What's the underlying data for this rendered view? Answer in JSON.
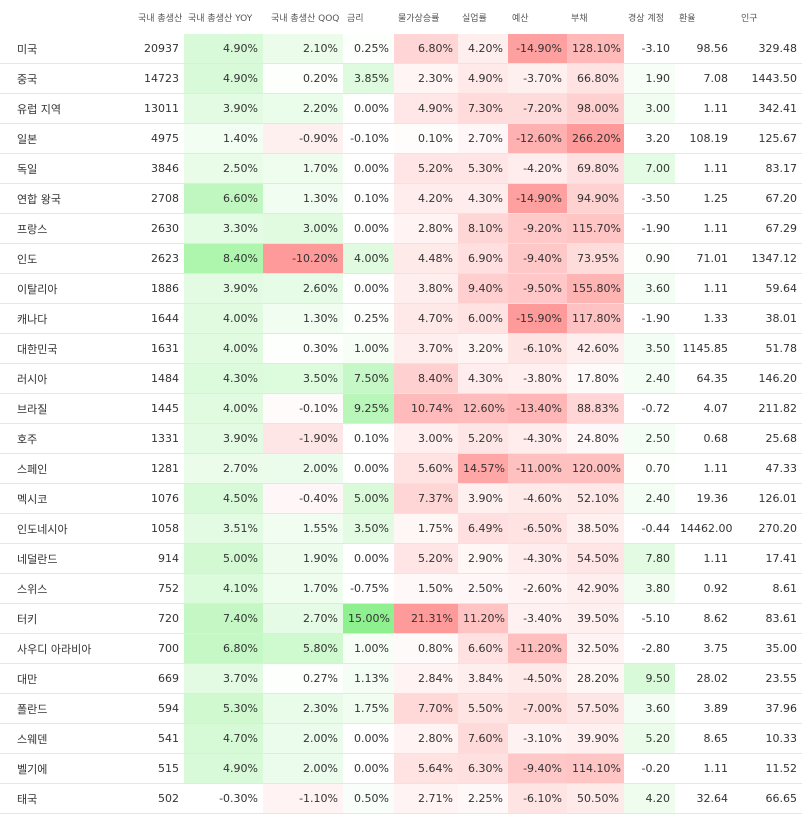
{
  "chart_data": {
    "type": "table",
    "columns": [
      {
        "key": "country",
        "label": ""
      },
      {
        "key": "gdp",
        "label": "국내 총생산"
      },
      {
        "key": "gdp_yoy",
        "label": "국내 총생산 YOY"
      },
      {
        "key": "gdp_qoq",
        "label": "국내 총생산 QOQ"
      },
      {
        "key": "rate",
        "label": "금리"
      },
      {
        "key": "inflation",
        "label": "물가상승률"
      },
      {
        "key": "unemployment",
        "label": "실업률"
      },
      {
        "key": "budget",
        "label": "예산"
      },
      {
        "key": "debt",
        "label": "부채"
      },
      {
        "key": "current_account",
        "label": "경상 계정"
      },
      {
        "key": "fx",
        "label": "환율"
      },
      {
        "key": "population",
        "label": "인구"
      }
    ],
    "rows": [
      {
        "country": "미국",
        "gdp": "20937",
        "gdp_yoy": "4.90%",
        "gdp_qoq": "2.10%",
        "rate": "0.25%",
        "inflation": "6.80%",
        "unemployment": "4.20%",
        "budget": "-14.90%",
        "debt": "128.10%",
        "current_account": "-3.10",
        "fx": "98.56",
        "population": "329.48"
      },
      {
        "country": "중국",
        "gdp": "14723",
        "gdp_yoy": "4.90%",
        "gdp_qoq": "0.20%",
        "rate": "3.85%",
        "inflation": "2.30%",
        "unemployment": "4.90%",
        "budget": "-3.70%",
        "debt": "66.80%",
        "current_account": "1.90",
        "fx": "7.08",
        "population": "1443.50"
      },
      {
        "country": "유럽 지역",
        "gdp": "13011",
        "gdp_yoy": "3.90%",
        "gdp_qoq": "2.20%",
        "rate": "0.00%",
        "inflation": "4.90%",
        "unemployment": "7.30%",
        "budget": "-7.20%",
        "debt": "98.00%",
        "current_account": "3.00",
        "fx": "1.11",
        "population": "342.41"
      },
      {
        "country": "일본",
        "gdp": "4975",
        "gdp_yoy": "1.40%",
        "gdp_qoq": "-0.90%",
        "rate": "-0.10%",
        "inflation": "0.10%",
        "unemployment": "2.70%",
        "budget": "-12.60%",
        "debt": "266.20%",
        "current_account": "3.20",
        "fx": "108.19",
        "population": "125.67"
      },
      {
        "country": "독일",
        "gdp": "3846",
        "gdp_yoy": "2.50%",
        "gdp_qoq": "1.70%",
        "rate": "0.00%",
        "inflation": "5.20%",
        "unemployment": "5.30%",
        "budget": "-4.20%",
        "debt": "69.80%",
        "current_account": "7.00",
        "fx": "1.11",
        "population": "83.17"
      },
      {
        "country": "연합 왕국",
        "gdp": "2708",
        "gdp_yoy": "6.60%",
        "gdp_qoq": "1.30%",
        "rate": "0.10%",
        "inflation": "4.20%",
        "unemployment": "4.30%",
        "budget": "-14.90%",
        "debt": "94.90%",
        "current_account": "-3.50",
        "fx": "1.25",
        "population": "67.20"
      },
      {
        "country": "프랑스",
        "gdp": "2630",
        "gdp_yoy": "3.30%",
        "gdp_qoq": "3.00%",
        "rate": "0.00%",
        "inflation": "2.80%",
        "unemployment": "8.10%",
        "budget": "-9.20%",
        "debt": "115.70%",
        "current_account": "-1.90",
        "fx": "1.11",
        "population": "67.29"
      },
      {
        "country": "인도",
        "gdp": "2623",
        "gdp_yoy": "8.40%",
        "gdp_qoq": "-10.20%",
        "rate": "4.00%",
        "inflation": "4.48%",
        "unemployment": "6.90%",
        "budget": "-9.40%",
        "debt": "73.95%",
        "current_account": "0.90",
        "fx": "71.01",
        "population": "1347.12"
      },
      {
        "country": "이탈리아",
        "gdp": "1886",
        "gdp_yoy": "3.90%",
        "gdp_qoq": "2.60%",
        "rate": "0.00%",
        "inflation": "3.80%",
        "unemployment": "9.40%",
        "budget": "-9.50%",
        "debt": "155.80%",
        "current_account": "3.60",
        "fx": "1.11",
        "population": "59.64"
      },
      {
        "country": "캐나다",
        "gdp": "1644",
        "gdp_yoy": "4.00%",
        "gdp_qoq": "1.30%",
        "rate": "0.25%",
        "inflation": "4.70%",
        "unemployment": "6.00%",
        "budget": "-15.90%",
        "debt": "117.80%",
        "current_account": "-1.90",
        "fx": "1.33",
        "population": "38.01"
      },
      {
        "country": "대한민국",
        "gdp": "1631",
        "gdp_yoy": "4.00%",
        "gdp_qoq": "0.30%",
        "rate": "1.00%",
        "inflation": "3.70%",
        "unemployment": "3.20%",
        "budget": "-6.10%",
        "debt": "42.60%",
        "current_account": "3.50",
        "fx": "1145.85",
        "population": "51.78"
      },
      {
        "country": "러시아",
        "gdp": "1484",
        "gdp_yoy": "4.30%",
        "gdp_qoq": "3.50%",
        "rate": "7.50%",
        "inflation": "8.40%",
        "unemployment": "4.30%",
        "budget": "-3.80%",
        "debt": "17.80%",
        "current_account": "2.40",
        "fx": "64.35",
        "population": "146.20"
      },
      {
        "country": "브라질",
        "gdp": "1445",
        "gdp_yoy": "4.00%",
        "gdp_qoq": "-0.10%",
        "rate": "9.25%",
        "inflation": "10.74%",
        "unemployment": "12.60%",
        "budget": "-13.40%",
        "debt": "88.83%",
        "current_account": "-0.72",
        "fx": "4.07",
        "population": "211.82"
      },
      {
        "country": "호주",
        "gdp": "1331",
        "gdp_yoy": "3.90%",
        "gdp_qoq": "-1.90%",
        "rate": "0.10%",
        "inflation": "3.00%",
        "unemployment": "5.20%",
        "budget": "-4.30%",
        "debt": "24.80%",
        "current_account": "2.50",
        "fx": "0.68",
        "population": "25.68"
      },
      {
        "country": "스페인",
        "gdp": "1281",
        "gdp_yoy": "2.70%",
        "gdp_qoq": "2.00%",
        "rate": "0.00%",
        "inflation": "5.60%",
        "unemployment": "14.57%",
        "budget": "-11.00%",
        "debt": "120.00%",
        "current_account": "0.70",
        "fx": "1.11",
        "population": "47.33"
      },
      {
        "country": "멕시코",
        "gdp": "1076",
        "gdp_yoy": "4.50%",
        "gdp_qoq": "-0.40%",
        "rate": "5.00%",
        "inflation": "7.37%",
        "unemployment": "3.90%",
        "budget": "-4.60%",
        "debt": "52.10%",
        "current_account": "2.40",
        "fx": "19.36",
        "population": "126.01"
      },
      {
        "country": "인도네시아",
        "gdp": "1058",
        "gdp_yoy": "3.51%",
        "gdp_qoq": "1.55%",
        "rate": "3.50%",
        "inflation": "1.75%",
        "unemployment": "6.49%",
        "budget": "-6.50%",
        "debt": "38.50%",
        "current_account": "-0.44",
        "fx": "14462.00",
        "population": "270.20"
      },
      {
        "country": "네덜란드",
        "gdp": "914",
        "gdp_yoy": "5.00%",
        "gdp_qoq": "1.90%",
        "rate": "0.00%",
        "inflation": "5.20%",
        "unemployment": "2.90%",
        "budget": "-4.30%",
        "debt": "54.50%",
        "current_account": "7.80",
        "fx": "1.11",
        "population": "17.41"
      },
      {
        "country": "스위스",
        "gdp": "752",
        "gdp_yoy": "4.10%",
        "gdp_qoq": "1.70%",
        "rate": "-0.75%",
        "inflation": "1.50%",
        "unemployment": "2.50%",
        "budget": "-2.60%",
        "debt": "42.90%",
        "current_account": "3.80",
        "fx": "0.92",
        "population": "8.61"
      },
      {
        "country": "터키",
        "gdp": "720",
        "gdp_yoy": "7.40%",
        "gdp_qoq": "2.70%",
        "rate": "15.00%",
        "inflation": "21.31%",
        "unemployment": "11.20%",
        "budget": "-3.40%",
        "debt": "39.50%",
        "current_account": "-5.10",
        "fx": "8.62",
        "population": "83.61"
      },
      {
        "country": "사우디 아라비아",
        "gdp": "700",
        "gdp_yoy": "6.80%",
        "gdp_qoq": "5.80%",
        "rate": "1.00%",
        "inflation": "0.80%",
        "unemployment": "6.60%",
        "budget": "-11.20%",
        "debt": "32.50%",
        "current_account": "-2.80",
        "fx": "3.75",
        "population": "35.00"
      },
      {
        "country": "대만",
        "gdp": "669",
        "gdp_yoy": "3.70%",
        "gdp_qoq": "0.27%",
        "rate": "1.13%",
        "inflation": "2.84%",
        "unemployment": "3.84%",
        "budget": "-4.50%",
        "debt": "28.20%",
        "current_account": "9.50",
        "fx": "28.02",
        "population": "23.55"
      },
      {
        "country": "폴란드",
        "gdp": "594",
        "gdp_yoy": "5.30%",
        "gdp_qoq": "2.30%",
        "rate": "1.75%",
        "inflation": "7.70%",
        "unemployment": "5.50%",
        "budget": "-7.00%",
        "debt": "57.50%",
        "current_account": "3.60",
        "fx": "3.89",
        "population": "37.96"
      },
      {
        "country": "스웨덴",
        "gdp": "541",
        "gdp_yoy": "4.70%",
        "gdp_qoq": "2.00%",
        "rate": "0.00%",
        "inflation": "2.80%",
        "unemployment": "7.60%",
        "budget": "-3.10%",
        "debt": "39.90%",
        "current_account": "5.20",
        "fx": "8.65",
        "population": "10.33"
      },
      {
        "country": "벨기에",
        "gdp": "515",
        "gdp_yoy": "4.90%",
        "gdp_qoq": "2.00%",
        "rate": "0.00%",
        "inflation": "5.64%",
        "unemployment": "6.30%",
        "budget": "-9.40%",
        "debt": "114.10%",
        "current_account": "-0.20",
        "fx": "1.11",
        "population": "11.52"
      },
      {
        "country": "태국",
        "gdp": "502",
        "gdp_yoy": "-0.30%",
        "gdp_qoq": "-1.10%",
        "rate": "0.50%",
        "inflation": "2.71%",
        "unemployment": "2.25%",
        "budget": "-6.10%",
        "debt": "50.50%",
        "current_account": "4.20",
        "fx": "32.64",
        "population": "66.65"
      }
    ],
    "cell_colors": {
      "gdp_yoy": [
        "#d8fad8",
        "#d8fad8",
        "#e2fbe2",
        "#f3fef3",
        "#e8fce8",
        "#c0f7c0",
        "#e4fbe4",
        "#aef5ae",
        "#e2fbe2",
        "#e1fbe1",
        "#e1fbe1",
        "#dcfadc",
        "#e1fbe1",
        "#e2fbe2",
        "#ebfceb",
        "#d9fad9",
        "#e3fbe3",
        "#d3f9d3",
        "#dcfadc",
        "#c4f7c4",
        "#c6f8c6",
        "#e2fbe2",
        "#d0f9d0",
        "#d6fad6",
        "#d8fad8",
        "#ffffff"
      ],
      "gdp_qoq": [
        "#ebfceb",
        "#fdfffd",
        "#eafcea",
        "#fff0f0",
        "#eefdee",
        "#f2fdf2",
        "#e1fbe1",
        "#ff9a9a",
        "#e7fce7",
        "#f2fdf2",
        "#fcfffc",
        "#ddfbdd",
        "#fffbfb",
        "#ffe6e6",
        "#ecfcec",
        "#fff7f7",
        "#f0fdf0",
        "#edfced",
        "#eefdee",
        "#e6fbe6",
        "#cff9cf",
        "#fdfffd",
        "#e9fce9",
        "#ecfcec",
        "#ecfcec",
        "#fff3f3"
      ],
      "rate": [
        "#fcfffc",
        "#dffbdf",
        "#ffffff",
        "#ffffff",
        "#ffffff",
        "#fefffe",
        "#ffffff",
        "#e0fbe0",
        "#ffffff",
        "#fcfffc",
        "#f6fef6",
        "#c6f7c6",
        "#b9f6b9",
        "#fefffe",
        "#ffffff",
        "#dafada",
        "#e2fbe2",
        "#ffffff",
        "#ffffff",
        "#8ef08e",
        "#f6fef6",
        "#f5fef5",
        "#f1fdf1",
        "#ffffff",
        "#ffffff",
        "#fafefa"
      ],
      "inflation": [
        "#ffd5d5",
        "#fff5f5",
        "#ffe7e7",
        "#fffcfc",
        "#ffe5e5",
        "#ffeded",
        "#fff3f3",
        "#ffeaea",
        "#ffeeee",
        "#ffe8e8",
        "#ffeeee",
        "#ffd0d0",
        "#ffbbbb",
        "#ffefef",
        "#ffe2e2",
        "#ffd6d6",
        "#fff6f6",
        "#ffe5e5",
        "#fff8f8",
        "#ff9a9a",
        "#fffafa",
        "#fff3f3",
        "#ffd8d8",
        "#fff3f3",
        "#ffe2e2",
        "#fff3f3"
      ],
      "unemployment": [
        "#ffeeee",
        "#ffe9e9",
        "#ffdbdb",
        "#fff7f7",
        "#ffe5e5",
        "#ffeded",
        "#ffd6d6",
        "#ffdfdf",
        "#ffcfcf",
        "#ffe2e2",
        "#fff4f4",
        "#ffeded",
        "#ffbcbc",
        "#ffe6e6",
        "#ffa6a6",
        "#fff0f0",
        "#ffdfdf",
        "#fff6f6",
        "#fff7f7",
        "#ffc3c3",
        "#ffe1e1",
        "#ffeeee",
        "#ffe4e4",
        "#ffdada",
        "#ffe0e0",
        "#fff8f8"
      ],
      "budget": [
        "#ffa0a0",
        "#fff0f0",
        "#ffdcdc",
        "#ffb0b0",
        "#ffecec",
        "#ffa0a0",
        "#ffc9c9",
        "#ffc8c8",
        "#ffc7c7",
        "#ff9a9a",
        "#ffe4e4",
        "#ffefef",
        "#ffb6b6",
        "#ffeded",
        "#ffc0c0",
        "#ffeaea",
        "#ffe3e3",
        "#ffeded",
        "#fff3f3",
        "#fff1f1",
        "#ffbfbf",
        "#ffeaea",
        "#ffdede",
        "#fff2f2",
        "#ffc8c8",
        "#ffe4e4"
      ],
      "debt": [
        "#ffb9b9",
        "#ffe2e2",
        "#ffd0d0",
        "#ff9a9a",
        "#ffe0e0",
        "#ffd2d2",
        "#ffc4c4",
        "#ffdcdc",
        "#ffb4b4",
        "#ffc2c2",
        "#ffeeee",
        "#fffafa",
        "#ffd5d5",
        "#fff8f8",
        "#ffc0c0",
        "#ffe8e8",
        "#ffefef",
        "#ffe5e5",
        "#ffeeee",
        "#fff0f0",
        "#fff3f3",
        "#fff6f6",
        "#ffe6e6",
        "#ffefef",
        "#ffc5c5",
        "#ffeaea"
      ],
      "current_account": [
        "#ffffff",
        "#f7fef7",
        "#f2fdf2",
        "#ffffff",
        "#e4fbe4",
        "#ffffff",
        "#ffffff",
        "#fcfffc",
        "#f3fdf3",
        "#ffffff",
        "#f3fdf3",
        "#f5fef5",
        "#ffffff",
        "#f4fef4",
        "#fdfffd",
        "#f5fef5",
        "#ffffff",
        "#e2fbe2",
        "#f0fdf0",
        "#ffffff",
        "#ffffff",
        "#d8fad8",
        "#f3fdf3",
        "#ebfceb",
        "#ffffff",
        "#eefdee"
      ]
    }
  }
}
